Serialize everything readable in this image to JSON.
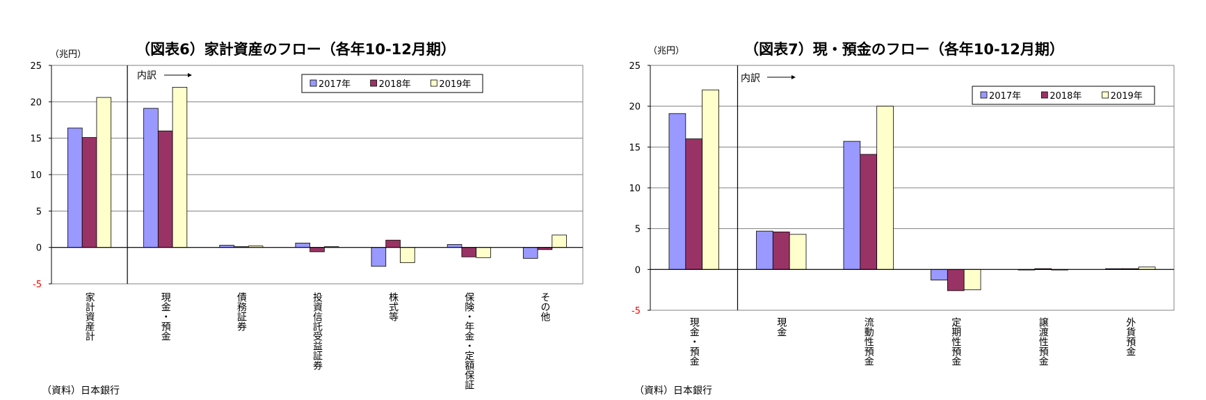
{
  "source_text": "（資料）日本銀行",
  "chart_data": [
    {
      "type": "bar",
      "title": "（図表6）家計資産のフロー（各年10-12月期）",
      "unit_label": "（兆円）",
      "note_label": "内訳",
      "ylim": [
        -5,
        25
      ],
      "yticks": [
        "25",
        "20",
        "15",
        "10",
        "5",
        "0",
        "-5"
      ],
      "legend_position": "top-right",
      "categories": [
        "家計資産計",
        "現金・預金",
        "債務証券",
        "投資信託受益証券",
        "株式等",
        "保険・年金・定額保証",
        "その他"
      ],
      "series": [
        {
          "name": "2017年",
          "color": "#9999ff",
          "values": [
            16.4,
            19.1,
            0.3,
            0.6,
            -2.6,
            0.4,
            -1.5
          ]
        },
        {
          "name": "2018年",
          "color": "#993366",
          "values": [
            15.1,
            16.0,
            0.1,
            -0.6,
            1.0,
            -1.3,
            -0.3
          ]
        },
        {
          "name": "2019年",
          "color": "#ffffcc",
          "values": [
            20.6,
            22.0,
            0.2,
            0.1,
            -2.1,
            -1.4,
            1.7
          ]
        }
      ]
    },
    {
      "type": "bar",
      "title": "（図表7）現・預金のフロー（各年10-12月期）",
      "unit_label": "（兆円）",
      "note_label": "内訳",
      "ylim": [
        -5,
        25
      ],
      "yticks": [
        "25",
        "20",
        "15",
        "10",
        "5",
        "0",
        "-5"
      ],
      "legend_position": "top-right",
      "categories": [
        "現金・預金",
        "現金",
        "流動性預金",
        "定期性預金",
        "譲渡性預金",
        "外貨預金"
      ],
      "series": [
        {
          "name": "2017年",
          "color": "#9999ff",
          "values": [
            19.1,
            4.7,
            15.7,
            -1.3,
            0.0,
            0.1
          ]
        },
        {
          "name": "2018年",
          "color": "#993366",
          "values": [
            16.0,
            4.6,
            14.1,
            -2.6,
            0.1,
            0.1
          ]
        },
        {
          "name": "2019年",
          "color": "#ffffcc",
          "values": [
            22.0,
            4.3,
            20.0,
            -2.5,
            0.0,
            0.3
          ]
        }
      ]
    }
  ]
}
